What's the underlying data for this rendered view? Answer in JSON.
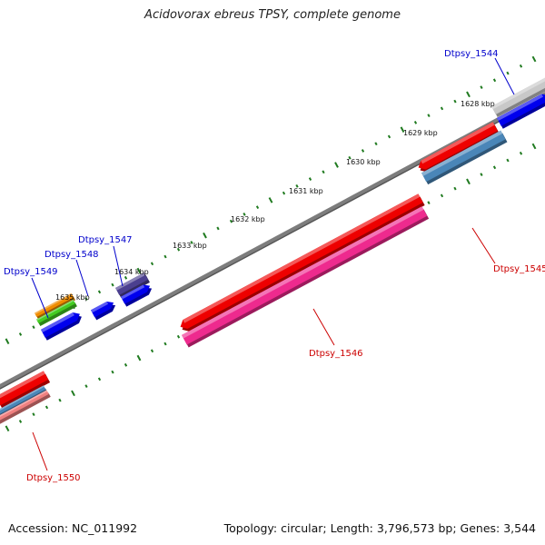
{
  "title": "Acidovorax ebreus TPSY, complete genome",
  "footer": {
    "accession": "Accession: NC_011992",
    "summary": "Topology: circular; Length: 3,796,573 bp; Genes: 3,544"
  },
  "colors": {
    "backbone": "#7d7d7d",
    "tick": "#1f7a1f",
    "forward_label": "#0000cc",
    "reverse_label": "#cc0000"
  },
  "axis_ticks": [
    {
      "label": "1628 kbp"
    },
    {
      "label": "1629 kbp"
    },
    {
      "label": "1630 kbp"
    },
    {
      "label": "1631 kbp"
    },
    {
      "label": "1632 kbp"
    },
    {
      "label": "1633 kbp"
    },
    {
      "label": "1634 kbp"
    },
    {
      "label": "1635 kbp"
    }
  ],
  "gene_labels": [
    {
      "name": "Dtpsy_1544",
      "strand": "forward"
    },
    {
      "name": "Dtpsy_1547",
      "strand": "forward"
    },
    {
      "name": "Dtpsy_1548",
      "strand": "forward"
    },
    {
      "name": "Dtpsy_1549",
      "strand": "forward"
    },
    {
      "name": "Dtpsy_1545",
      "strand": "reverse"
    },
    {
      "name": "Dtpsy_1546",
      "strand": "reverse"
    },
    {
      "name": "Dtpsy_1550",
      "strand": "reverse"
    }
  ],
  "feature_colors": {
    "gray": "#c8c8c8",
    "blue": "#0000ee",
    "red": "#ee0000",
    "pink": "#ee2a8e",
    "steelblue": "#4a86b8",
    "salmon": "#f08080",
    "purple": "#4b3f8f",
    "orange": "#f08c00",
    "green": "#44cc22"
  }
}
